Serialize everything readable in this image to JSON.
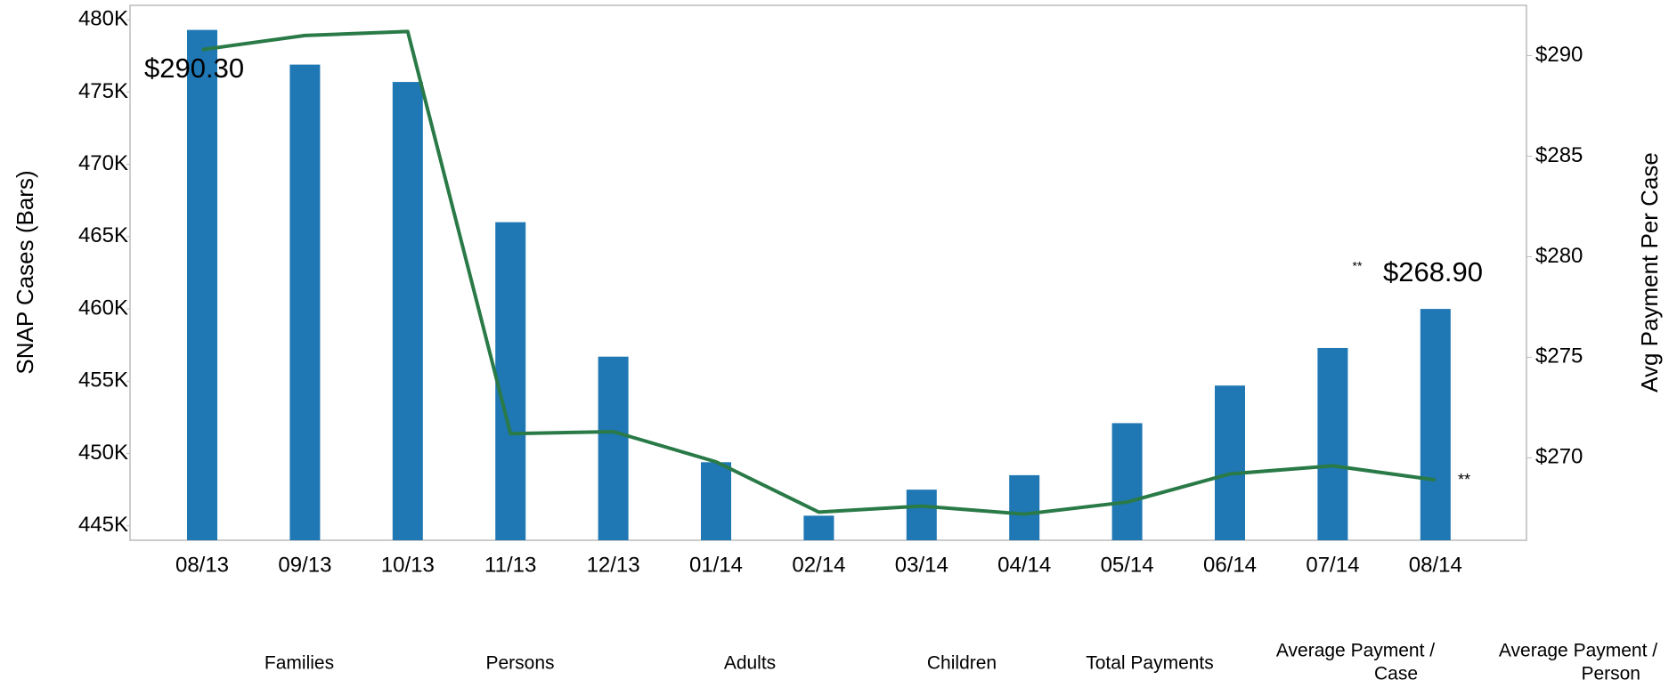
{
  "chart_data": {
    "type": "bar_line",
    "y_label": "SNAP Cases (Bars)",
    "y2_label": "Avg Payment Per Case",
    "categories": [
      "08/13",
      "09/13",
      "10/13",
      "11/13",
      "12/13",
      "01/14",
      "02/14",
      "03/14",
      "04/14",
      "05/14",
      "06/14",
      "07/14",
      "08/14"
    ],
    "series": [
      {
        "type": "bar",
        "color": "#1f77b4",
        "values": [
          479.3,
          476.9,
          475.7,
          466.0,
          456.7,
          449.4,
          445.7,
          447.5,
          448.5,
          452.1,
          454.7,
          457.3,
          460.0
        ]
      },
      {
        "type": "line",
        "axis": "y2",
        "color": "#2a7a48",
        "values": [
          290.3,
          291.0,
          291.2,
          271.2,
          271.3,
          269.8,
          267.3,
          267.6,
          267.2,
          267.8,
          269.2,
          269.6,
          268.9
        ],
        "value_labels": [
          "$290.30",
          null,
          null,
          null,
          null,
          null,
          null,
          null,
          null,
          null,
          null,
          null,
          "$268.90"
        ]
      }
    ],
    "ylim": [
      444,
      481
    ],
    "yticks": [
      {
        "value": 445,
        "label": "445K"
      },
      {
        "value": 450,
        "label": "450K"
      },
      {
        "value": 455,
        "label": "455K"
      },
      {
        "value": 460,
        "label": "460K"
      },
      {
        "value": 465,
        "label": "465K"
      },
      {
        "value": 470,
        "label": "470K"
      },
      {
        "value": 475,
        "label": "475K"
      },
      {
        "value": 480,
        "label": "480K"
      }
    ],
    "y2lim": [
      265.9,
      292.5
    ],
    "y2ticks": [
      {
        "value": 270,
        "label": "$270"
      },
      {
        "value": 275,
        "label": "$275"
      },
      {
        "value": 280,
        "label": "$280"
      },
      {
        "value": 285,
        "label": "$285"
      },
      {
        "value": 290,
        "label": "$290"
      }
    ],
    "annotations": [
      "**",
      "**"
    ],
    "table_headers": [
      [
        "Families"
      ],
      [
        "Persons"
      ],
      [
        "Adults"
      ],
      [
        "Children"
      ],
      [
        "Total Payments"
      ],
      [
        "Average Payment /",
        "Case"
      ],
      [
        "Average Payment /",
        "Person"
      ]
    ]
  }
}
